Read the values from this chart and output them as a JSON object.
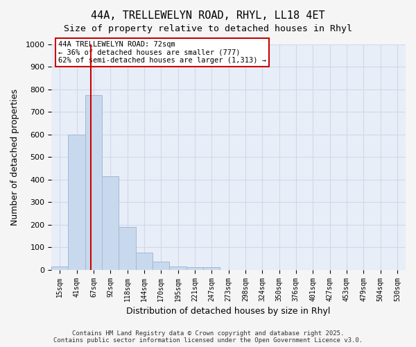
{
  "title_line1": "44A, TRELLEWELYN ROAD, RHYL, LL18 4ET",
  "title_line2": "Size of property relative to detached houses in Rhyl",
  "xlabel": "Distribution of detached houses by size in Rhyl",
  "ylabel": "Number of detached properties",
  "bar_labels": [
    "15sqm",
    "41sqm",
    "67sqm",
    "92sqm",
    "118sqm",
    "144sqm",
    "170sqm",
    "195sqm",
    "221sqm",
    "247sqm",
    "273sqm",
    "298sqm",
    "324sqm",
    "350sqm",
    "376sqm",
    "401sqm",
    "427sqm",
    "453sqm",
    "479sqm",
    "504sqm",
    "530sqm"
  ],
  "bar_values": [
    15,
    600,
    775,
    415,
    190,
    75,
    35,
    15,
    10,
    12,
    0,
    0,
    0,
    0,
    0,
    0,
    0,
    0,
    0,
    0,
    0
  ],
  "bar_color": "#c9d9ed",
  "bar_edgecolor": "#a0b8d8",
  "vline_x_index": 1.85,
  "vline_color": "#cc0000",
  "annotation_text": "44A TRELLEWELYN ROAD: 72sqm\n← 36% of detached houses are smaller (777)\n62% of semi-detached houses are larger (1,313) →",
  "annotation_box_edgecolor": "#cc0000",
  "annotation_box_facecolor": "#ffffff",
  "ylim": [
    0,
    1000
  ],
  "yticks": [
    0,
    100,
    200,
    300,
    400,
    500,
    600,
    700,
    800,
    900,
    1000
  ],
  "grid_color": "#d0d8e8",
  "bg_color": "#e8eef8",
  "footer_text": "Contains HM Land Registry data © Crown copyright and database right 2025.\nContains public sector information licensed under the Open Government Licence v3.0.",
  "fig_width": 6.0,
  "fig_height": 5.0
}
